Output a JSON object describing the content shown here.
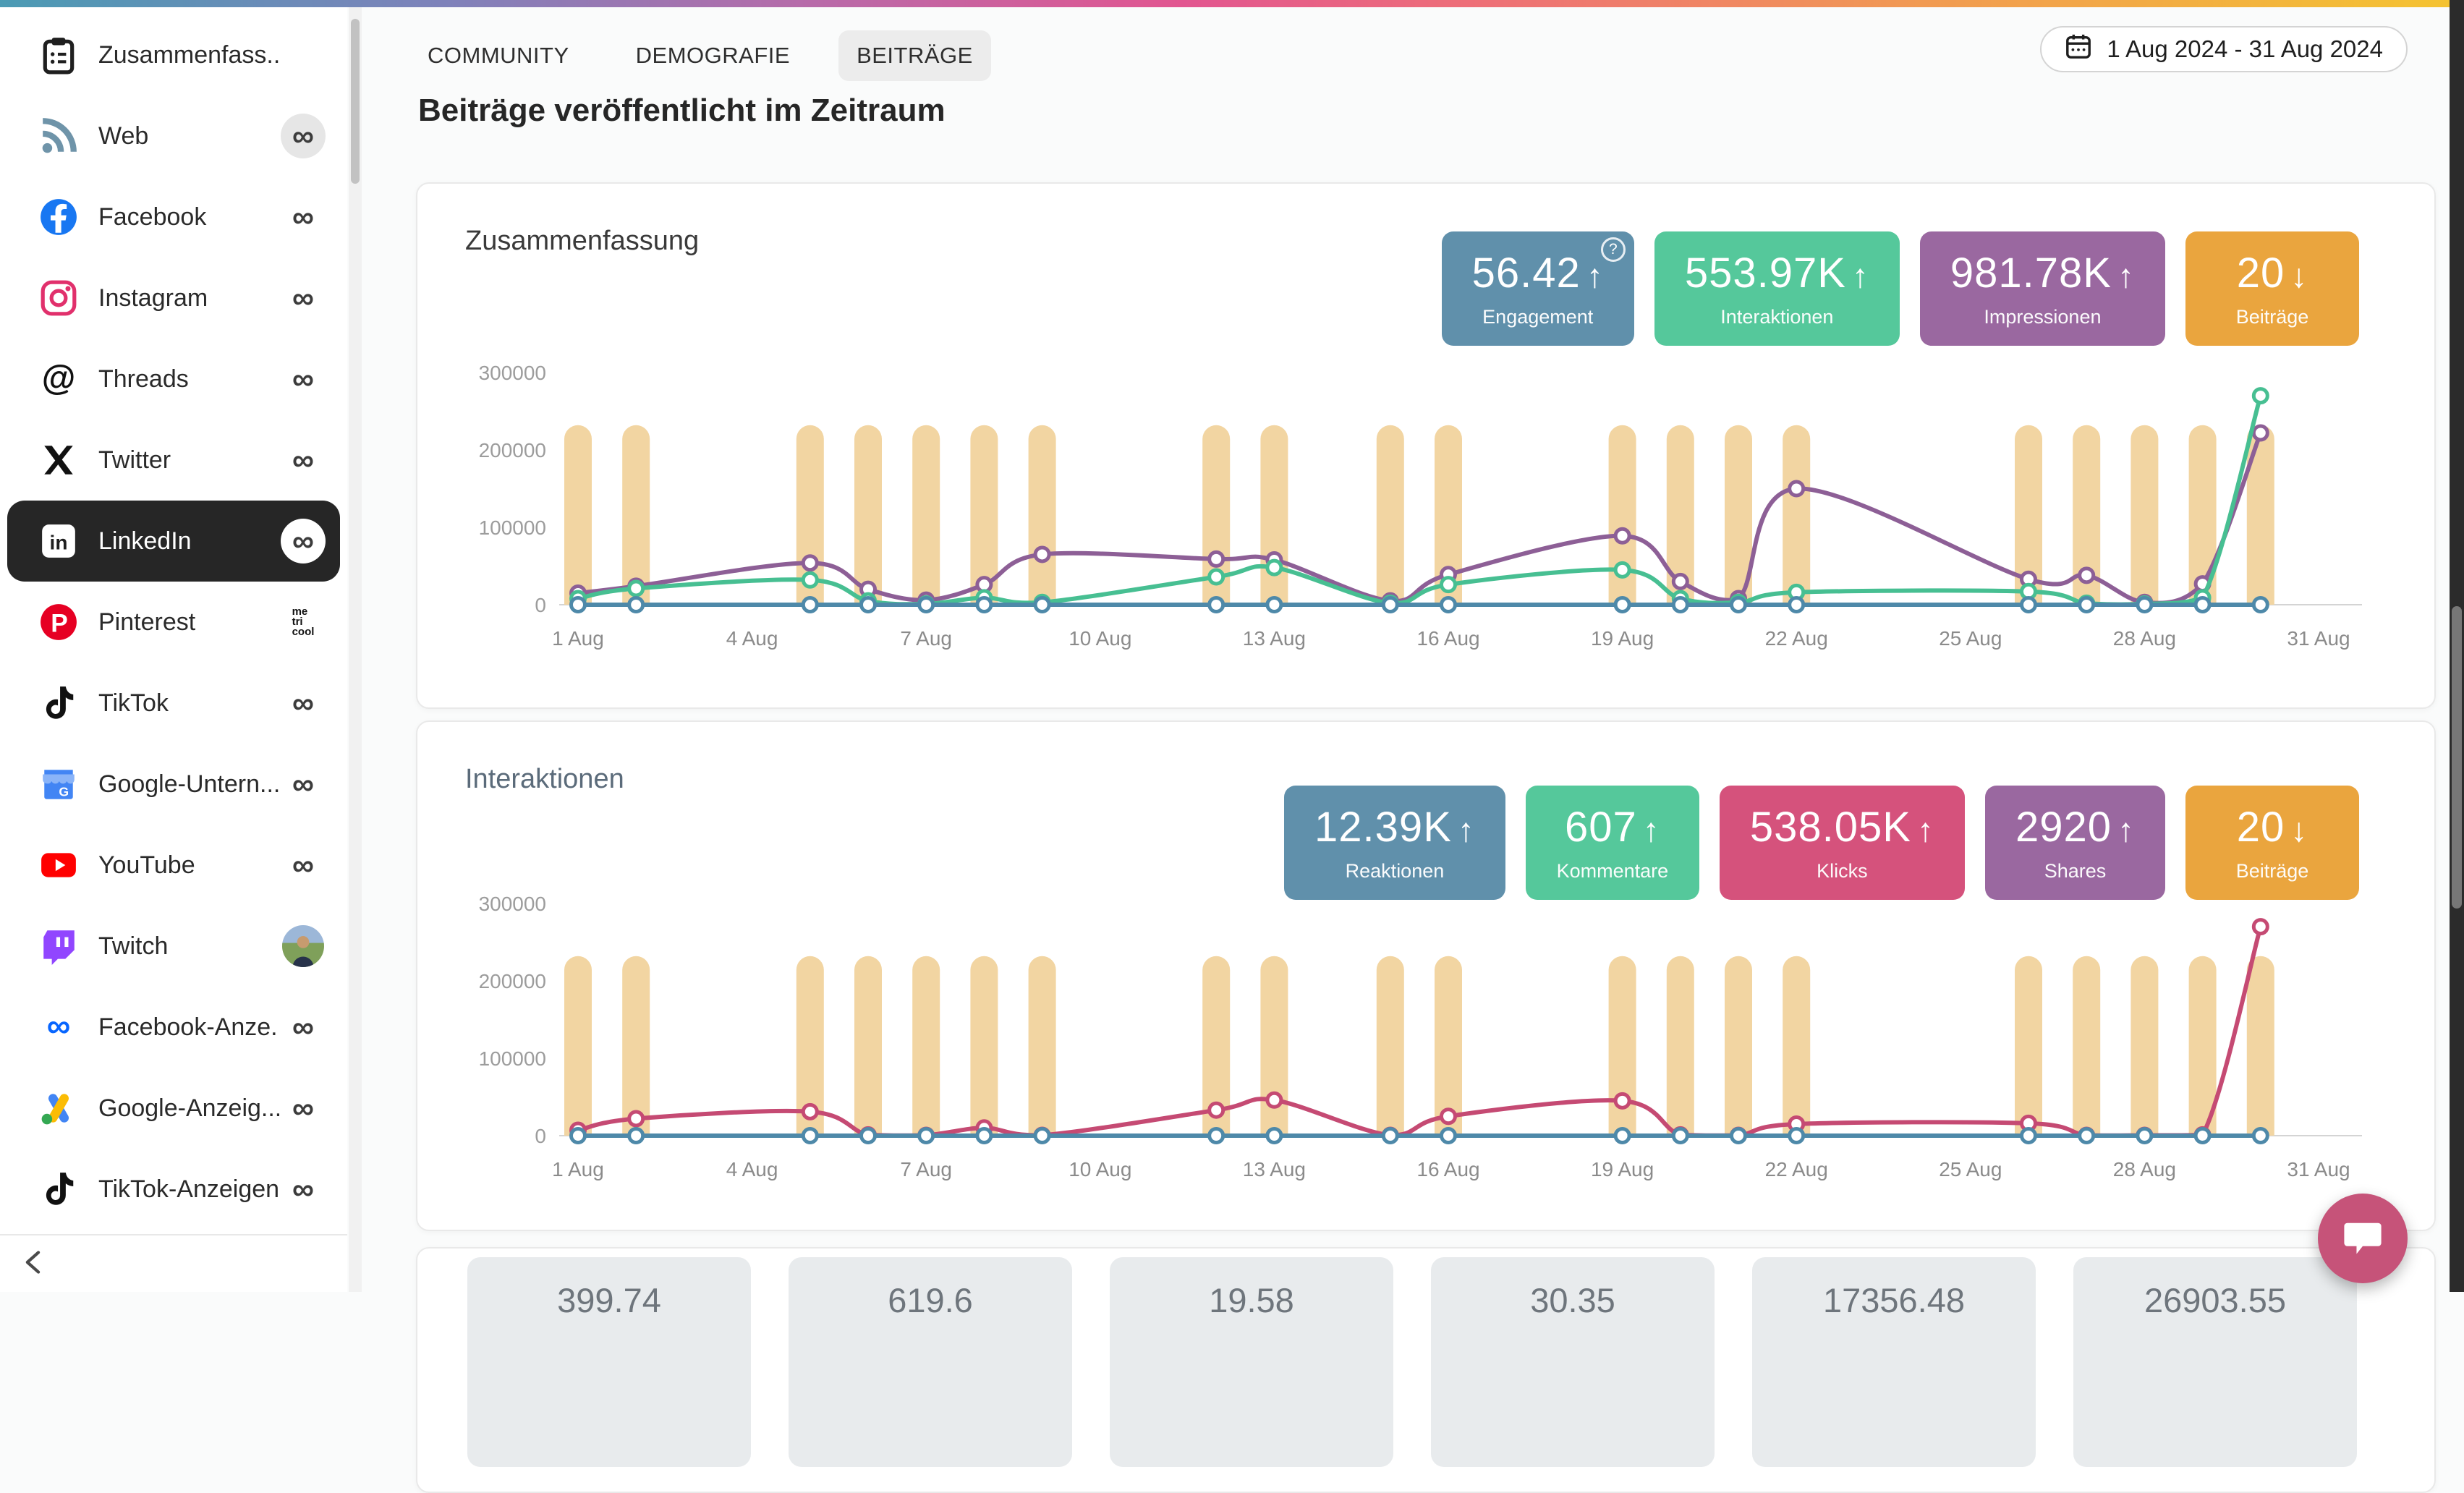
{
  "topbar": {
    "gradient": [
      "#4b9bb4",
      "#7e82ba",
      "#b86aa9",
      "#e25590",
      "#ee6f77",
      "#f19a52",
      "#f4c430"
    ]
  },
  "sidebar": {
    "items": [
      {
        "label": "Zusammenfass...",
        "icon": "clipboard",
        "badge": "none",
        "selected": false
      },
      {
        "label": "Web",
        "icon": "rss",
        "badge": "infinity-circle",
        "selected": false
      },
      {
        "label": "Facebook",
        "icon": "facebook",
        "badge": "infinity",
        "selected": false
      },
      {
        "label": "Instagram",
        "icon": "instagram",
        "badge": "infinity",
        "selected": false
      },
      {
        "label": "Threads",
        "icon": "threads",
        "badge": "infinity",
        "selected": false
      },
      {
        "label": "Twitter",
        "icon": "twitter-x",
        "badge": "infinity",
        "selected": false
      },
      {
        "label": "LinkedIn",
        "icon": "linkedin",
        "badge": "infinity-white",
        "selected": true
      },
      {
        "label": "Pinterest",
        "icon": "pinterest",
        "badge": "metricool",
        "selected": false
      },
      {
        "label": "TikTok",
        "icon": "tiktok",
        "badge": "infinity",
        "selected": false
      },
      {
        "label": "Google-Untern...",
        "icon": "google-business",
        "badge": "infinity",
        "selected": false
      },
      {
        "label": "YouTube",
        "icon": "youtube",
        "badge": "infinity",
        "selected": false
      },
      {
        "label": "Twitch",
        "icon": "twitch",
        "badge": "avatar",
        "selected": false
      },
      {
        "label": "Facebook-Anze...",
        "icon": "meta",
        "badge": "infinity",
        "selected": false
      },
      {
        "label": "Google-Anzeig...",
        "icon": "google-ads",
        "badge": "infinity",
        "selected": false
      },
      {
        "label": "TikTok-Anzeigen",
        "icon": "tiktok",
        "badge": "infinity",
        "selected": false
      }
    ],
    "metricool_logo_lines": [
      "me",
      "tri",
      "cool"
    ]
  },
  "tabs": {
    "items": [
      {
        "label": "COMMUNITY",
        "active": false
      },
      {
        "label": "DEMOGRAFIE",
        "active": false
      },
      {
        "label": "BEITRÄGE",
        "active": true
      }
    ]
  },
  "date_range": {
    "label": "1 Aug 2024 - 31 Aug 2024"
  },
  "page": {
    "title": "Beiträge veröffentlicht im Zeitraum"
  },
  "cards": [
    {
      "title": "Zusammenfassung",
      "badges": [
        {
          "value": "56.42",
          "direction": "up",
          "label": "Engagement",
          "color": "#6090ab",
          "help": true
        },
        {
          "value": "553.97K",
          "direction": "up",
          "label": "Interaktionen",
          "color": "#55c89b",
          "help": false
        },
        {
          "value": "981.78K",
          "direction": "up",
          "label": "Impressionen",
          "color": "#9a68a0",
          "help": false
        },
        {
          "value": "20",
          "direction": "down",
          "label": "Beiträge",
          "color": "#eaa53e",
          "help": false
        }
      ]
    },
    {
      "title": "Interaktionen",
      "badges": [
        {
          "value": "12.39K",
          "direction": "up",
          "label": "Reaktionen",
          "color": "#6090ab",
          "help": false
        },
        {
          "value": "607",
          "direction": "up",
          "label": "Kommentare",
          "color": "#55c89b",
          "help": false
        },
        {
          "value": "538.05K",
          "direction": "up",
          "label": "Klicks",
          "color": "#d5527c",
          "help": false
        },
        {
          "value": "2920",
          "direction": "up",
          "label": "Shares",
          "color": "#9a68a0",
          "help": false
        },
        {
          "value": "20",
          "direction": "down",
          "label": "Beiträge",
          "color": "#eaa53e",
          "help": false
        }
      ]
    }
  ],
  "tiles": {
    "values": [
      "399.74",
      "619.6",
      "19.58",
      "30.35",
      "17356.48",
      "26903.55"
    ]
  },
  "chat": {
    "color": "#c65379"
  },
  "chart_data": [
    {
      "type": "bar+line",
      "title": "Zusammenfassung",
      "ylim": [
        0,
        300000
      ],
      "y_ticks": [
        0,
        100000,
        200000,
        300000
      ],
      "x_tick_days": [
        1,
        4,
        7,
        10,
        13,
        16,
        19,
        22,
        25,
        28,
        31
      ],
      "x_tick_labels": [
        "1 Aug",
        "4 Aug",
        "7 Aug",
        "10 Aug",
        "13 Aug",
        "16 Aug",
        "19 Aug",
        "22 Aug",
        "25 Aug",
        "28 Aug",
        "31 Aug"
      ],
      "post_days": [
        1,
        2,
        5,
        6,
        7,
        8,
        9,
        12,
        13,
        15,
        16,
        19,
        20,
        21,
        22,
        26,
        27,
        28,
        29,
        30
      ],
      "bars": {
        "name": "Beiträge",
        "color": "#f2d5a2",
        "visual_value": 232000
      },
      "grid": false,
      "legend": false,
      "series": [
        {
          "name": "Impressionen",
          "color": "#8d5f96",
          "points": true,
          "values": [
            15000,
            24000,
            54000,
            20000,
            6000,
            26000,
            65000,
            59000,
            58000,
            5000,
            39000,
            89000,
            30000,
            8000,
            150000,
            33000,
            38000,
            3000,
            27000,
            222000
          ]
        },
        {
          "name": "Interaktionen",
          "color": "#47bf92",
          "points": true,
          "values": [
            8000,
            21000,
            32000,
            5000,
            1000,
            9000,
            3000,
            36000,
            48000,
            2000,
            26000,
            45000,
            8000,
            3000,
            16000,
            17000,
            2000,
            1000,
            9000,
            270000
          ]
        },
        {
          "name": "Engagement",
          "color": "#4e89a9",
          "points": true,
          "values": [
            0,
            0,
            0,
            0,
            0,
            0,
            0,
            0,
            0,
            0,
            0,
            0,
            0,
            0,
            0,
            0,
            0,
            0,
            0,
            0
          ]
        }
      ]
    },
    {
      "type": "bar+line",
      "title": "Interaktionen",
      "ylim": [
        0,
        300000
      ],
      "y_ticks": [
        0,
        100000,
        200000,
        300000
      ],
      "x_tick_days": [
        1,
        4,
        7,
        10,
        13,
        16,
        19,
        22,
        25,
        28,
        31
      ],
      "x_tick_labels": [
        "1 Aug",
        "4 Aug",
        "7 Aug",
        "10 Aug",
        "13 Aug",
        "16 Aug",
        "19 Aug",
        "22 Aug",
        "25 Aug",
        "28 Aug",
        "31 Aug"
      ],
      "post_days": [
        1,
        2,
        5,
        6,
        7,
        8,
        9,
        12,
        13,
        15,
        16,
        19,
        20,
        21,
        22,
        26,
        27,
        28,
        29,
        30
      ],
      "bars": {
        "name": "Beiträge",
        "color": "#f2d5a2",
        "visual_value": 232000
      },
      "grid": false,
      "legend": false,
      "series": [
        {
          "name": "Kommentare",
          "color": "#47bf92",
          "points": false,
          "values": [
            0,
            0,
            0,
            0,
            0,
            0,
            0,
            0,
            0,
            0,
            0,
            0,
            0,
            0,
            0,
            0,
            0,
            0,
            0,
            0
          ]
        },
        {
          "name": "Klicks",
          "color": "#c54a73",
          "points": true,
          "values": [
            7000,
            22000,
            31000,
            1000,
            500,
            10000,
            500,
            33000,
            46000,
            500,
            25000,
            45000,
            1000,
            500,
            15000,
            16000,
            500,
            500,
            1000,
            270000
          ]
        },
        {
          "name": "Reaktionen",
          "color": "#4e89a9",
          "points": true,
          "values": [
            0,
            0,
            0,
            0,
            0,
            0,
            0,
            0,
            0,
            0,
            0,
            0,
            0,
            0,
            0,
            0,
            0,
            0,
            0,
            0
          ]
        }
      ]
    }
  ]
}
